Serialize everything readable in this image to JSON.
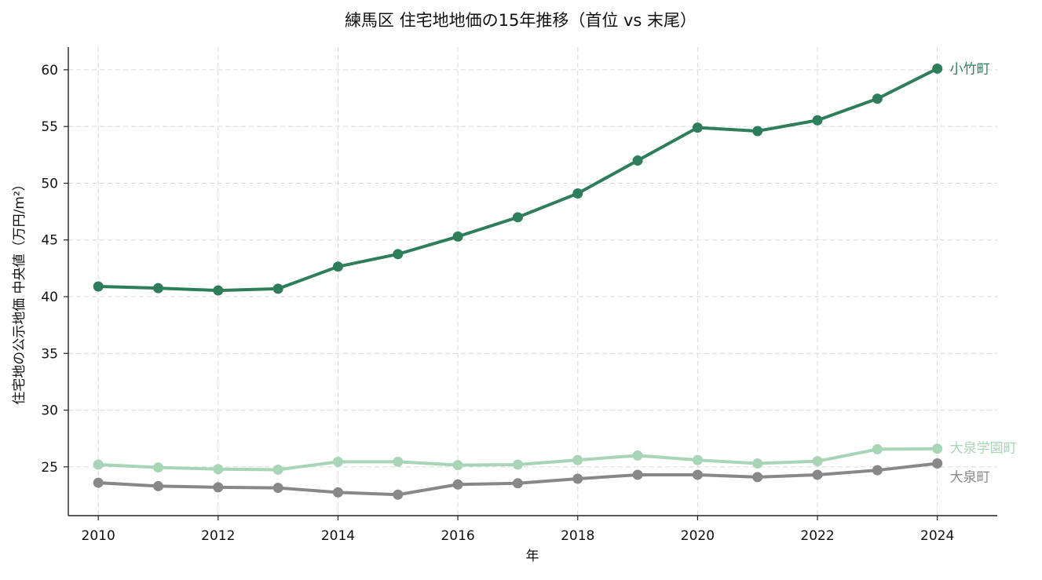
{
  "chart_data": {
    "type": "line",
    "title": "練馬区 住宅地地価の15年推移（首位 vs 末尾）",
    "xlabel": "年",
    "ylabel": "住宅地の公示地価 中央値（万円/m²）",
    "x": [
      2010,
      2011,
      2012,
      2013,
      2014,
      2015,
      2016,
      2017,
      2018,
      2019,
      2020,
      2021,
      2022,
      2023,
      2024
    ],
    "xticks": [
      2010,
      2012,
      2014,
      2016,
      2018,
      2020,
      2022,
      2024
    ],
    "xlim": [
      2009.5,
      2025
    ],
    "yticks": [
      25,
      30,
      35,
      40,
      45,
      50,
      55,
      60
    ],
    "ylim": [
      20.7,
      62.0
    ],
    "grid": true,
    "legend": "labels at line ends",
    "series": [
      {
        "name": "小竹町",
        "color": "#2e7d5b",
        "values": [
          40.9,
          40.75,
          40.55,
          40.7,
          42.65,
          43.75,
          45.3,
          47.0,
          49.1,
          52.0,
          54.9,
          54.6,
          55.55,
          57.45,
          60.1
        ]
      },
      {
        "name": "大泉学園町",
        "color": "#a8d5b5",
        "values": [
          25.2,
          24.95,
          24.8,
          24.75,
          25.45,
          25.45,
          25.15,
          25.2,
          25.6,
          26.0,
          25.6,
          25.3,
          25.5,
          26.55,
          26.6
        ]
      },
      {
        "name": "大泉町",
        "color": "#888888",
        "values": [
          23.6,
          23.3,
          23.2,
          23.15,
          22.75,
          22.55,
          23.45,
          23.55,
          23.95,
          24.3,
          24.3,
          24.1,
          24.3,
          24.7,
          25.3
        ]
      }
    ]
  }
}
